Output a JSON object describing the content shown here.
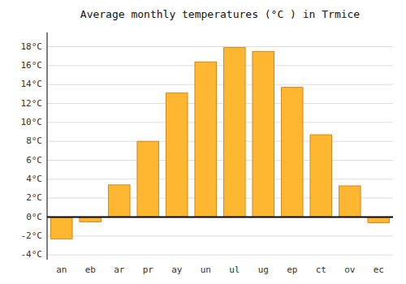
{
  "chart_data": {
    "type": "bar",
    "title": "Average monthly temperatures (°C ) in Trmice",
    "categories": [
      "an",
      "eb",
      "ar",
      "pr",
      "ay",
      "un",
      "ul",
      "ug",
      "ep",
      "ct",
      "ov",
      "ec"
    ],
    "values": [
      -2.3,
      -0.5,
      3.4,
      8.0,
      13.1,
      16.4,
      17.9,
      17.5,
      13.7,
      8.7,
      3.3,
      -0.6
    ],
    "color": "#FFB732",
    "ylim": [
      -4.5,
      19.5
    ],
    "yticks": [
      {
        "value": -4,
        "label": "-4°C"
      },
      {
        "value": -2,
        "label": "-2°C"
      },
      {
        "value": 0,
        "label": "0°C"
      },
      {
        "value": 2,
        "label": "2°C"
      },
      {
        "value": 4,
        "label": "4°C"
      },
      {
        "value": 6,
        "label": "6°C"
      },
      {
        "value": 8,
        "label": "8°C"
      },
      {
        "value": 10,
        "label": "10°C"
      },
      {
        "value": 12,
        "label": "12°C"
      },
      {
        "value": 14,
        "label": "14°C"
      },
      {
        "value": 16,
        "label": "16°C"
      },
      {
        "value": 18,
        "label": "18°C"
      }
    ],
    "grid": true
  }
}
